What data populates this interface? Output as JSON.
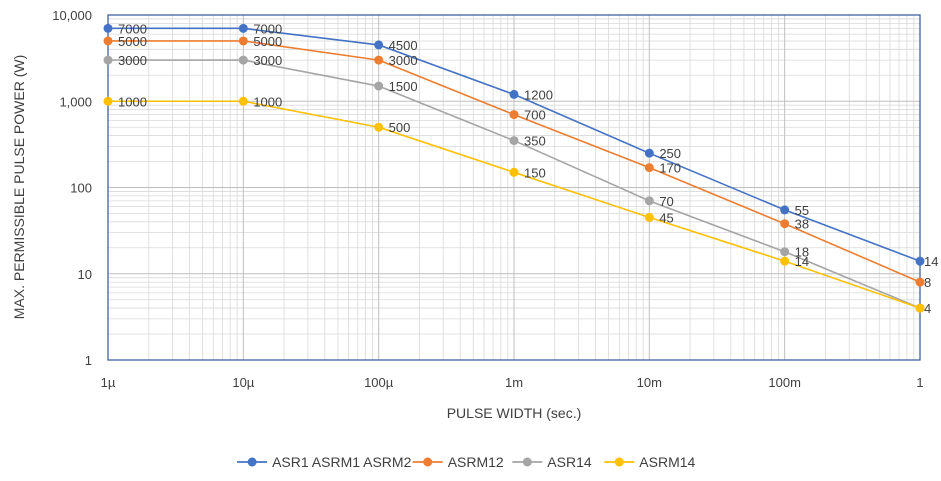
{
  "chart_data": {
    "type": "line",
    "title": "",
    "xlabel": "PULSE WIDTH (sec.)",
    "ylabel": "MAX. PERMISSIBLE PULSE POWER (W)",
    "x_scale": "log",
    "y_scale": "log",
    "x_ticks": [
      {
        "value": 1e-06,
        "label": "1µ"
      },
      {
        "value": 1e-05,
        "label": "10µ"
      },
      {
        "value": 0.0001,
        "label": "100µ"
      },
      {
        "value": 0.001,
        "label": "1m"
      },
      {
        "value": 0.01,
        "label": "10m"
      },
      {
        "value": 0.1,
        "label": "100m"
      },
      {
        "value": 1,
        "label": "1"
      }
    ],
    "y_ticks": [
      {
        "value": 1,
        "label": "1"
      },
      {
        "value": 10,
        "label": "10"
      },
      {
        "value": 100,
        "label": "100"
      },
      {
        "value": 1000,
        "label": "1,000"
      },
      {
        "value": 10000,
        "label": "10,000"
      }
    ],
    "xlim": [
      1e-06,
      1
    ],
    "ylim": [
      1,
      10000
    ],
    "grid": true,
    "legend_position": "bottom",
    "x": [
      1e-06,
      1e-05,
      0.0001,
      0.001,
      0.01,
      0.1,
      1
    ],
    "series": [
      {
        "name": "ASR1 ASRM1 ASRM2",
        "color": "#4472C4",
        "values": [
          7000,
          7000,
          4500,
          1200,
          250,
          55,
          14
        ],
        "labels": [
          "7000",
          "7000",
          "4500",
          "1200",
          "250",
          "55",
          "14"
        ]
      },
      {
        "name": "ASRM12",
        "color": "#ED7D31",
        "values": [
          5000,
          5000,
          3000,
          700,
          170,
          38,
          8
        ],
        "labels": [
          "5000",
          "5000",
          "3000",
          "700",
          "170",
          "38",
          "8"
        ]
      },
      {
        "name": "ASR14",
        "color": "#A5A5A5",
        "values": [
          3000,
          3000,
          1500,
          350,
          70,
          18,
          4
        ],
        "labels": [
          "3000",
          "3000",
          "1500",
          "350",
          "70",
          "18",
          ""
        ]
      },
      {
        "name": "ASRM14",
        "color": "#FFC000",
        "values": [
          1000,
          1000,
          500,
          150,
          45,
          14,
          4
        ],
        "labels": [
          "1000",
          "1000",
          "500",
          "150",
          "45",
          "14",
          "4"
        ]
      }
    ]
  }
}
